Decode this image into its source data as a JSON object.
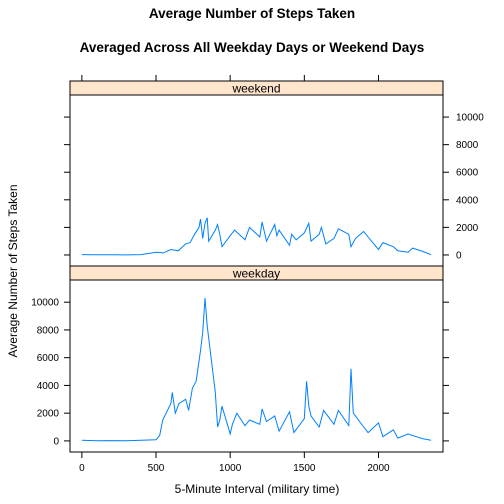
{
  "chart_data": {
    "type": "line",
    "title": "Average Number of Steps Taken",
    "subtitle": "Averaged Across All Weekday Days or Weekend Days",
    "xlabel": "5-Minute Interval (military time)",
    "ylabel": "Average Number of Steps Taken",
    "xlim": [
      -80,
      2435
    ],
    "ylim": [
      -800,
      11600
    ],
    "x_ticks": [
      0,
      500,
      1000,
      1500,
      2000
    ],
    "y_ticks": [
      0,
      2000,
      4000,
      6000,
      8000,
      10000
    ],
    "grid": false,
    "legend": "none",
    "line_color": "#0080ff",
    "strip_color": "#ffe5cc",
    "panels": [
      {
        "name": "weekend",
        "y_axis_side": "right",
        "x": [
          0,
          100,
          200,
          300,
          400,
          500,
          550,
          600,
          650,
          700,
          730,
          760,
          790,
          800,
          815,
          830,
          845,
          855,
          900,
          915,
          930,
          945,
          1000,
          1030,
          1100,
          1130,
          1200,
          1215,
          1245,
          1300,
          1315,
          1330,
          1400,
          1415,
          1445,
          1500,
          1530,
          1545,
          1600,
          1615,
          1645,
          1700,
          1730,
          1800,
          1815,
          1845,
          1900,
          1930,
          2000,
          2030,
          2100,
          2130,
          2200,
          2230,
          2300,
          2355
        ],
        "y": [
          30,
          10,
          20,
          5,
          30,
          200,
          150,
          400,
          300,
          800,
          900,
          1500,
          2000,
          2600,
          1200,
          2300,
          2700,
          1000,
          1800,
          2200,
          1500,
          600,
          1400,
          1800,
          1100,
          2000,
          1300,
          2400,
          1000,
          2200,
          1400,
          1800,
          700,
          1500,
          1100,
          1600,
          2300,
          1000,
          1500,
          2000,
          800,
          1200,
          1900,
          1500,
          600,
          1200,
          1700,
          1300,
          400,
          900,
          600,
          300,
          200,
          500,
          250,
          20
        ]
      },
      {
        "name": "weekday",
        "y_axis_side": "left",
        "x": [
          0,
          100,
          200,
          300,
          400,
          500,
          525,
          545,
          600,
          610,
          630,
          655,
          700,
          720,
          745,
          770,
          800,
          815,
          830,
          845,
          900,
          915,
          930,
          945,
          1000,
          1015,
          1045,
          1100,
          1130,
          1200,
          1215,
          1245,
          1300,
          1330,
          1400,
          1430,
          1500,
          1515,
          1530,
          1545,
          1600,
          1630,
          1700,
          1730,
          1800,
          1815,
          1830,
          1845,
          1900,
          1930,
          2000,
          2030,
          2100,
          2130,
          2200,
          2300,
          2355
        ],
        "y": [
          50,
          10,
          20,
          5,
          40,
          80,
          400,
          1500,
          2700,
          3500,
          2000,
          2700,
          3000,
          2200,
          3800,
          4300,
          6500,
          7800,
          10300,
          8300,
          3500,
          1000,
          1500,
          2500,
          500,
          1200,
          2000,
          1100,
          1500,
          1200,
          2300,
          1400,
          1800,
          700,
          2100,
          600,
          1600,
          4300,
          2500,
          1800,
          1000,
          2200,
          1200,
          2200,
          1100,
          5200,
          2000,
          1800,
          1000,
          600,
          1300,
          300,
          800,
          200,
          500,
          150,
          40
        ]
      }
    ]
  }
}
